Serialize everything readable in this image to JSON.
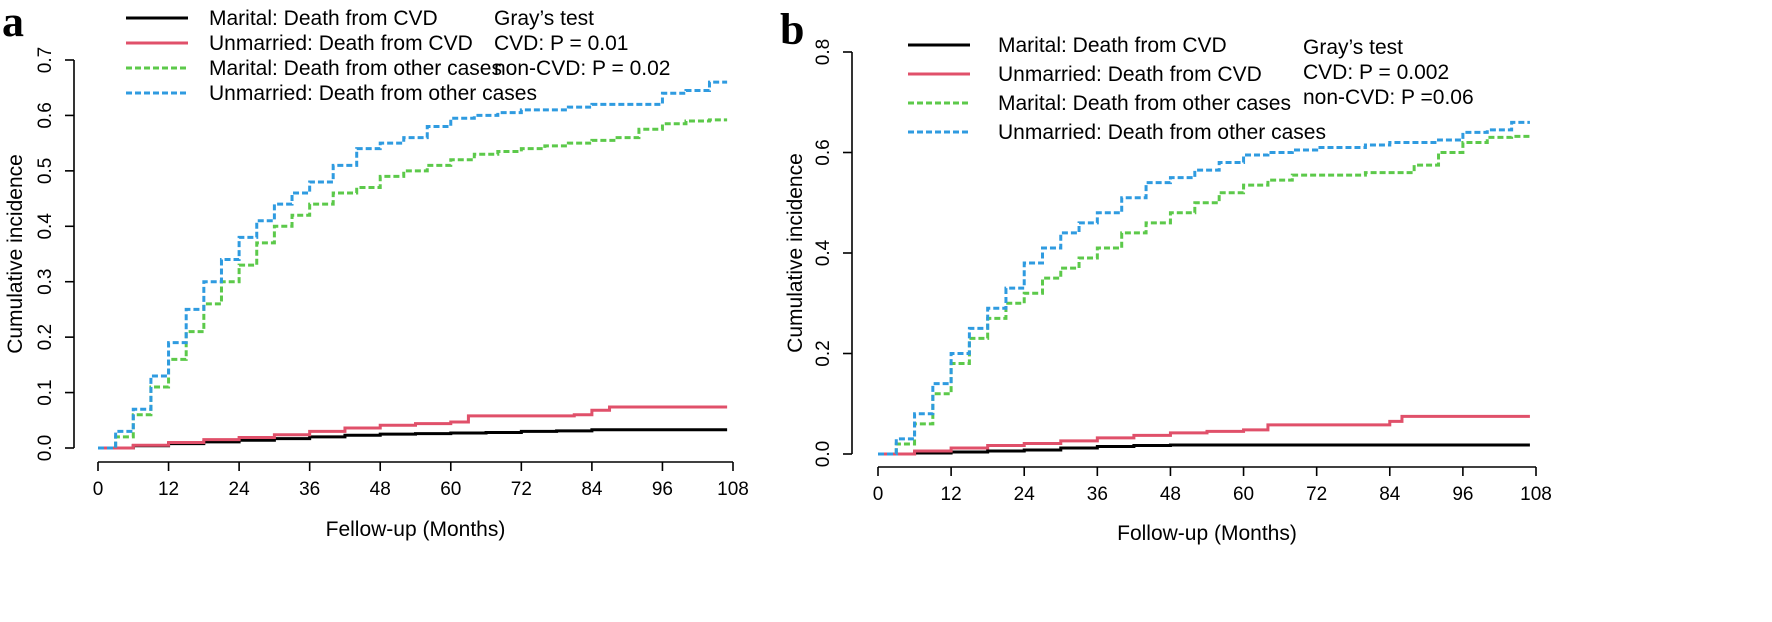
{
  "colors": {
    "marital_cvd": "#000000",
    "unmarried_cvd": "#e0506a",
    "marital_other": "#5cc94a",
    "unmarried_other": "#2f9be0"
  },
  "chart_data": [
    {
      "type": "line",
      "panel_label": "a",
      "title": "",
      "xlabel": "Fellow-up (Months)",
      "ylabel": "Cumulative incidence",
      "xlim": [
        0,
        108
      ],
      "ylim": [
        0,
        0.7
      ],
      "xticks": [
        "0",
        "12",
        "24",
        "36",
        "48",
        "60",
        "72",
        "84",
        "96",
        "108"
      ],
      "yticks": [
        "0.0",
        "0.1",
        "0.2",
        "0.3",
        "0.4",
        "0.5",
        "0.6",
        "0.7"
      ],
      "grid": false,
      "legend_position": "top-left",
      "annotation": [
        "Gray’s test",
        "CVD: P = 0.01",
        "non-CVD: P = 0.02"
      ],
      "series": [
        {
          "name": "Marital: Death from CVD",
          "color": "#000000",
          "dash": "solid",
          "x": [
            0,
            6,
            12,
            18,
            24,
            30,
            36,
            42,
            48,
            54,
            60,
            66,
            72,
            78,
            84,
            90,
            96,
            102,
            107
          ],
          "y": [
            0,
            0.004,
            0.008,
            0.011,
            0.014,
            0.017,
            0.02,
            0.023,
            0.025,
            0.026,
            0.027,
            0.028,
            0.03,
            0.031,
            0.033,
            0.033,
            0.033,
            0.033,
            0.033
          ]
        },
        {
          "name": "Unmarried: Death from CVD",
          "color": "#e0506a",
          "dash": "solid",
          "x": [
            0,
            6,
            12,
            18,
            24,
            30,
            36,
            42,
            48,
            54,
            60,
            63,
            66,
            72,
            78,
            81,
            84,
            87,
            96,
            102,
            107
          ],
          "y": [
            0,
            0.005,
            0.01,
            0.015,
            0.019,
            0.024,
            0.03,
            0.036,
            0.041,
            0.044,
            0.047,
            0.058,
            0.058,
            0.058,
            0.058,
            0.06,
            0.068,
            0.074,
            0.074,
            0.074,
            0.074
          ]
        },
        {
          "name": "Marital: Death from other cases",
          "color": "#5cc94a",
          "dash": "dashed",
          "x": [
            0,
            3,
            6,
            9,
            12,
            15,
            18,
            21,
            24,
            27,
            30,
            33,
            36,
            40,
            44,
            48,
            52,
            56,
            60,
            64,
            68,
            72,
            76,
            80,
            84,
            88,
            92,
            96,
            100,
            104,
            107
          ],
          "y": [
            0,
            0.02,
            0.06,
            0.11,
            0.16,
            0.21,
            0.26,
            0.3,
            0.33,
            0.37,
            0.4,
            0.42,
            0.44,
            0.46,
            0.47,
            0.49,
            0.5,
            0.51,
            0.52,
            0.53,
            0.535,
            0.54,
            0.545,
            0.55,
            0.555,
            0.56,
            0.575,
            0.585,
            0.59,
            0.592,
            0.592
          ]
        },
        {
          "name": "Unmarried: Death from other cases",
          "color": "#2f9be0",
          "dash": "dashed",
          "x": [
            0,
            3,
            6,
            9,
            12,
            15,
            18,
            21,
            24,
            27,
            30,
            33,
            36,
            40,
            44,
            48,
            52,
            56,
            60,
            64,
            68,
            72,
            76,
            80,
            84,
            88,
            92,
            96,
            100,
            104,
            107
          ],
          "y": [
            0,
            0.03,
            0.07,
            0.13,
            0.19,
            0.25,
            0.3,
            0.34,
            0.38,
            0.41,
            0.44,
            0.46,
            0.48,
            0.51,
            0.54,
            0.55,
            0.56,
            0.58,
            0.595,
            0.6,
            0.605,
            0.61,
            0.61,
            0.615,
            0.62,
            0.62,
            0.62,
            0.64,
            0.645,
            0.66,
            0.66
          ]
        }
      ]
    },
    {
      "type": "line",
      "panel_label": "b",
      "title": "",
      "xlabel": "Follow-up (Months)",
      "ylabel": "Cumulative incidence",
      "xlim": [
        0,
        108
      ],
      "ylim": [
        0,
        0.8
      ],
      "xticks": [
        "0",
        "12",
        "24",
        "36",
        "48",
        "60",
        "72",
        "84",
        "96",
        "108"
      ],
      "yticks": [
        "0.0",
        "0.2",
        "0.4",
        "0.6",
        "0.8"
      ],
      "grid": false,
      "legend_position": "top-left",
      "annotation": [
        "Gray’s test",
        "CVD: P = 0.002",
        "non-CVD: P =0.06"
      ],
      "series": [
        {
          "name": "Marital: Death from CVD",
          "color": "#000000",
          "dash": "solid",
          "x": [
            0,
            6,
            12,
            18,
            24,
            30,
            36,
            42,
            48,
            60,
            72,
            84,
            96,
            107
          ],
          "y": [
            0,
            0.002,
            0.004,
            0.006,
            0.008,
            0.012,
            0.015,
            0.017,
            0.018,
            0.018,
            0.018,
            0.018,
            0.018,
            0.018
          ]
        },
        {
          "name": "Unmarried: Death from CVD",
          "color": "#e0506a",
          "dash": "solid",
          "x": [
            0,
            6,
            12,
            18,
            24,
            30,
            36,
            42,
            48,
            54,
            60,
            64,
            72,
            78,
            84,
            86,
            96,
            102,
            107
          ],
          "y": [
            0,
            0.006,
            0.012,
            0.017,
            0.021,
            0.026,
            0.032,
            0.037,
            0.042,
            0.045,
            0.048,
            0.058,
            0.058,
            0.058,
            0.065,
            0.075,
            0.075,
            0.075,
            0.075
          ]
        },
        {
          "name": "Marital: Death from other cases",
          "color": "#5cc94a",
          "dash": "dashed",
          "x": [
            0,
            3,
            6,
            9,
            12,
            15,
            18,
            21,
            24,
            27,
            30,
            33,
            36,
            40,
            44,
            48,
            52,
            56,
            60,
            64,
            68,
            72,
            76,
            80,
            84,
            88,
            92,
            96,
            100,
            104,
            107
          ],
          "y": [
            0,
            0.02,
            0.06,
            0.12,
            0.18,
            0.23,
            0.27,
            0.3,
            0.32,
            0.35,
            0.37,
            0.39,
            0.41,
            0.44,
            0.46,
            0.48,
            0.5,
            0.52,
            0.535,
            0.545,
            0.555,
            0.555,
            0.555,
            0.56,
            0.56,
            0.575,
            0.6,
            0.62,
            0.63,
            0.632,
            0.632
          ]
        },
        {
          "name": "Unmarried: Death from other cases",
          "color": "#2f9be0",
          "dash": "dashed",
          "x": [
            0,
            3,
            6,
            9,
            12,
            15,
            18,
            21,
            24,
            27,
            30,
            33,
            36,
            40,
            44,
            48,
            52,
            56,
            60,
            64,
            68,
            72,
            76,
            80,
            84,
            88,
            92,
            96,
            100,
            104,
            107
          ],
          "y": [
            0,
            0.03,
            0.08,
            0.14,
            0.2,
            0.25,
            0.29,
            0.33,
            0.38,
            0.41,
            0.44,
            0.46,
            0.48,
            0.51,
            0.54,
            0.55,
            0.565,
            0.58,
            0.595,
            0.6,
            0.605,
            0.61,
            0.61,
            0.615,
            0.62,
            0.62,
            0.625,
            0.64,
            0.645,
            0.66,
            0.66
          ]
        }
      ]
    }
  ]
}
